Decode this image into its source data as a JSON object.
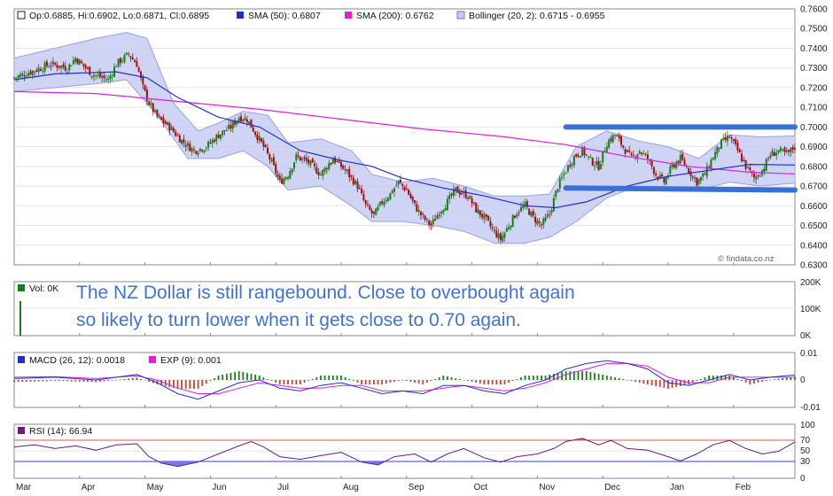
{
  "colors": {
    "up_candle": "#1a7f1a",
    "down_candle": "#a01010",
    "sma50": "#1f2fcc",
    "sma200": "#e01ee0",
    "bollinger_fill": "#c7cbf2",
    "bollinger_edge": "#9aa0e6",
    "range_lines": "#3a6fd8",
    "macd_line": "#1f2fcc",
    "exp_line": "#e01ee0",
    "hist_up": "#1a7f1a",
    "hist_down": "#d04030",
    "rsi_line": "#6a1a7a",
    "rsi_70": "#e05050",
    "rsi_30": "#3a3ad0",
    "annotation": "#3f73d6"
  },
  "annotation": {
    "line1": "The NZ Dollar is still rangebound. Close to overbought again",
    "line2": "so likely to turn lower when it gets close to 0.70 again."
  },
  "source": "© findata.co.nz",
  "chart_data": [
    {
      "type": "candlestick",
      "legend": {
        "ohlc": "Op:0.6885, Hi:0.6902, Lo:0.6871, Cl:0.6895",
        "sma50": "SMA (50): 0.6807",
        "sma200": "SMA (200): 0.6762",
        "bollinger": "Bollinger (20, 2): 0.6715 - 0.6955"
      },
      "ylim": [
        0.63,
        0.76
      ],
      "yticks": [
        "0.7600",
        "0.7500",
        "0.7400",
        "0.7300",
        "0.7200",
        "0.7100",
        "0.7000",
        "0.6900",
        "0.6800",
        "0.6700",
        "0.6600",
        "0.6500",
        "0.6400",
        "0.6300"
      ],
      "x_months": [
        "Mar",
        "Apr",
        "May",
        "Jun",
        "Jul",
        "Aug",
        "Sep",
        "Oct",
        "Nov",
        "Dec",
        "Jan",
        "Feb"
      ],
      "close_path": [
        [
          0,
          0.725
        ],
        [
          8,
          0.728
        ],
        [
          18,
          0.732
        ],
        [
          26,
          0.73
        ],
        [
          30,
          0.735
        ],
        [
          38,
          0.727
        ],
        [
          46,
          0.724
        ],
        [
          50,
          0.732
        ],
        [
          56,
          0.737
        ],
        [
          60,
          0.732
        ],
        [
          63,
          0.72
        ],
        [
          66,
          0.712
        ],
        [
          70,
          0.705
        ],
        [
          76,
          0.7
        ],
        [
          82,
          0.693
        ],
        [
          88,
          0.688
        ],
        [
          94,
          0.69
        ],
        [
          100,
          0.696
        ],
        [
          106,
          0.7
        ],
        [
          110,
          0.705
        ],
        [
          114,
          0.704
        ],
        [
          118,
          0.697
        ],
        [
          122,
          0.69
        ],
        [
          126,
          0.682
        ],
        [
          130,
          0.672
        ],
        [
          134,
          0.676
        ],
        [
          138,
          0.685
        ],
        [
          144,
          0.682
        ],
        [
          150,
          0.676
        ],
        [
          156,
          0.684
        ],
        [
          162,
          0.678
        ],
        [
          168,
          0.67
        ],
        [
          172,
          0.66
        ],
        [
          176,
          0.655
        ],
        [
          180,
          0.662
        ],
        [
          184,
          0.666
        ],
        [
          188,
          0.672
        ],
        [
          192,
          0.668
        ],
        [
          196,
          0.66
        ],
        [
          200,
          0.654
        ],
        [
          204,
          0.65
        ],
        [
          208,
          0.657
        ],
        [
          212,
          0.662
        ],
        [
          216,
          0.668
        ],
        [
          222,
          0.665
        ],
        [
          226,
          0.658
        ],
        [
          230,
          0.654
        ],
        [
          234,
          0.648
        ],
        [
          238,
          0.643
        ],
        [
          242,
          0.65
        ],
        [
          246,
          0.657
        ],
        [
          250,
          0.66
        ],
        [
          254,
          0.654
        ],
        [
          258,
          0.65
        ],
        [
          262,
          0.656
        ],
        [
          266,
          0.67
        ],
        [
          270,
          0.678
        ],
        [
          274,
          0.685
        ],
        [
          278,
          0.688
        ],
        [
          282,
          0.683
        ],
        [
          286,
          0.68
        ],
        [
          290,
          0.692
        ],
        [
          294,
          0.696
        ],
        [
          298,
          0.69
        ],
        [
          302,
          0.684
        ],
        [
          306,
          0.688
        ],
        [
          310,
          0.684
        ],
        [
          314,
          0.676
        ],
        [
          318,
          0.672
        ],
        [
          322,
          0.68
        ],
        [
          326,
          0.684
        ],
        [
          330,
          0.678
        ],
        [
          334,
          0.672
        ],
        [
          338,
          0.676
        ],
        [
          342,
          0.685
        ],
        [
          346,
          0.692
        ],
        [
          350,
          0.695
        ],
        [
          354,
          0.688
        ],
        [
          358,
          0.68
        ],
        [
          362,
          0.674
        ],
        [
          366,
          0.678
        ],
        [
          370,
          0.686
        ],
        [
          374,
          0.688
        ],
        [
          378,
          0.686
        ],
        [
          382,
          0.69
        ]
      ],
      "sma50_path": [
        [
          0,
          0.724
        ],
        [
          20,
          0.727
        ],
        [
          50,
          0.728
        ],
        [
          65,
          0.725
        ],
        [
          80,
          0.715
        ],
        [
          100,
          0.705
        ],
        [
          120,
          0.7
        ],
        [
          140,
          0.688
        ],
        [
          160,
          0.683
        ],
        [
          175,
          0.68
        ],
        [
          190,
          0.674
        ],
        [
          210,
          0.669
        ],
        [
          230,
          0.665
        ],
        [
          250,
          0.66
        ],
        [
          265,
          0.659
        ],
        [
          280,
          0.662
        ],
        [
          300,
          0.67
        ],
        [
          320,
          0.675
        ],
        [
          340,
          0.678
        ],
        [
          360,
          0.681
        ],
        [
          382,
          0.6807
        ]
      ],
      "sma200_path": [
        [
          0,
          0.718
        ],
        [
          40,
          0.717
        ],
        [
          80,
          0.713
        ],
        [
          120,
          0.709
        ],
        [
          160,
          0.704
        ],
        [
          200,
          0.699
        ],
        [
          240,
          0.695
        ],
        [
          270,
          0.691
        ],
        [
          300,
          0.685
        ],
        [
          330,
          0.68
        ],
        [
          360,
          0.677
        ],
        [
          382,
          0.6762
        ]
      ],
      "bollinger_upper": [
        [
          0,
          0.735
        ],
        [
          20,
          0.74
        ],
        [
          40,
          0.745
        ],
        [
          55,
          0.748
        ],
        [
          65,
          0.745
        ],
        [
          78,
          0.712
        ],
        [
          90,
          0.698
        ],
        [
          100,
          0.702
        ],
        [
          112,
          0.708
        ],
        [
          124,
          0.706
        ],
        [
          134,
          0.692
        ],
        [
          150,
          0.694
        ],
        [
          165,
          0.688
        ],
        [
          175,
          0.676
        ],
        [
          190,
          0.672
        ],
        [
          205,
          0.674
        ],
        [
          220,
          0.67
        ],
        [
          235,
          0.665
        ],
        [
          250,
          0.665
        ],
        [
          262,
          0.666
        ],
        [
          275,
          0.69
        ],
        [
          290,
          0.698
        ],
        [
          305,
          0.693
        ],
        [
          320,
          0.69
        ],
        [
          335,
          0.684
        ],
        [
          350,
          0.696
        ],
        [
          365,
          0.695
        ],
        [
          382,
          0.6955
        ]
      ],
      "bollinger_lower": [
        [
          0,
          0.718
        ],
        [
          20,
          0.72
        ],
        [
          40,
          0.722
        ],
        [
          55,
          0.724
        ],
        [
          70,
          0.706
        ],
        [
          85,
          0.684
        ],
        [
          100,
          0.684
        ],
        [
          112,
          0.688
        ],
        [
          124,
          0.68
        ],
        [
          134,
          0.668
        ],
        [
          150,
          0.67
        ],
        [
          165,
          0.66
        ],
        [
          175,
          0.652
        ],
        [
          190,
          0.652
        ],
        [
          205,
          0.65
        ],
        [
          220,
          0.647
        ],
        [
          235,
          0.641
        ],
        [
          250,
          0.641
        ],
        [
          262,
          0.644
        ],
        [
          275,
          0.652
        ],
        [
          290,
          0.664
        ],
        [
          305,
          0.67
        ],
        [
          320,
          0.668
        ],
        [
          335,
          0.668
        ],
        [
          350,
          0.672
        ],
        [
          365,
          0.67
        ],
        [
          382,
          0.6715
        ]
      ],
      "range_lines": [
        {
          "y_start": 0.7,
          "y_end": 0.7,
          "x_start": 270,
          "x_end": 382
        },
        {
          "y_start": 0.669,
          "y_end": 0.668,
          "x_start": 270,
          "x_end": 382
        }
      ]
    },
    {
      "type": "bar",
      "legend": "Vol: 0K",
      "yticks": [
        "200K",
        "100K",
        "0K"
      ]
    },
    {
      "type": "line",
      "legend": {
        "macd": "MACD (26, 12): 0.0018",
        "exp": "EXP (9): 0.001"
      },
      "ylim": [
        -0.01,
        0.01
      ],
      "yticks": [
        "0.01",
        "0",
        "-0.01"
      ],
      "macd_path": [
        [
          0,
          0.0005
        ],
        [
          20,
          0.001
        ],
        [
          40,
          0.0
        ],
        [
          60,
          0.002
        ],
        [
          70,
          -0.001
        ],
        [
          80,
          -0.005
        ],
        [
          90,
          -0.007
        ],
        [
          100,
          -0.004
        ],
        [
          110,
          -0.001
        ],
        [
          120,
          0.0
        ],
        [
          130,
          -0.003
        ],
        [
          140,
          -0.004
        ],
        [
          150,
          -0.002
        ],
        [
          160,
          -0.001
        ],
        [
          170,
          -0.003
        ],
        [
          180,
          -0.005
        ],
        [
          190,
          -0.004
        ],
        [
          200,
          -0.005
        ],
        [
          210,
          -0.002
        ],
        [
          220,
          -0.002
        ],
        [
          230,
          -0.004
        ],
        [
          240,
          -0.005
        ],
        [
          250,
          -0.002
        ],
        [
          260,
          0.0
        ],
        [
          270,
          0.004
        ],
        [
          280,
          0.006
        ],
        [
          290,
          0.007
        ],
        [
          300,
          0.006
        ],
        [
          310,
          0.004
        ],
        [
          320,
          -0.001
        ],
        [
          330,
          -0.002
        ],
        [
          340,
          0.0
        ],
        [
          350,
          0.002
        ],
        [
          360,
          0.0
        ],
        [
          370,
          0.001
        ],
        [
          382,
          0.0018
        ]
      ],
      "exp_path": [
        [
          0,
          0.001
        ],
        [
          20,
          0.0012
        ],
        [
          40,
          0.0005
        ],
        [
          60,
          0.0015
        ],
        [
          70,
          0.0
        ],
        [
          80,
          -0.003
        ],
        [
          90,
          -0.005
        ],
        [
          100,
          -0.005
        ],
        [
          110,
          -0.003
        ],
        [
          120,
          -0.001
        ],
        [
          130,
          -0.002
        ],
        [
          140,
          -0.003
        ],
        [
          150,
          -0.003
        ],
        [
          160,
          -0.002
        ],
        [
          170,
          -0.002
        ],
        [
          180,
          -0.004
        ],
        [
          190,
          -0.004
        ],
        [
          200,
          -0.004
        ],
        [
          210,
          -0.003
        ],
        [
          220,
          -0.002
        ],
        [
          230,
          -0.003
        ],
        [
          240,
          -0.004
        ],
        [
          250,
          -0.003
        ],
        [
          260,
          -0.001
        ],
        [
          270,
          0.002
        ],
        [
          280,
          0.004
        ],
        [
          290,
          0.006
        ],
        [
          300,
          0.006
        ],
        [
          310,
          0.005
        ],
        [
          320,
          0.001
        ],
        [
          330,
          -0.001
        ],
        [
          340,
          -0.001
        ],
        [
          350,
          0.001
        ],
        [
          360,
          0.001
        ],
        [
          370,
          0.001
        ],
        [
          382,
          0.001
        ]
      ]
    },
    {
      "type": "line",
      "legend": "RSI (14): 66.94",
      "ylim": [
        0,
        100
      ],
      "yticks": [
        "100",
        "70",
        "50",
        "30",
        "0"
      ],
      "rsi_path": [
        [
          0,
          58
        ],
        [
          10,
          62
        ],
        [
          20,
          55
        ],
        [
          30,
          60
        ],
        [
          40,
          52
        ],
        [
          50,
          62
        ],
        [
          60,
          64
        ],
        [
          66,
          40
        ],
        [
          72,
          28
        ],
        [
          80,
          22
        ],
        [
          90,
          30
        ],
        [
          100,
          45
        ],
        [
          110,
          60
        ],
        [
          116,
          68
        ],
        [
          122,
          58
        ],
        [
          130,
          40
        ],
        [
          140,
          35
        ],
        [
          150,
          42
        ],
        [
          160,
          48
        ],
        [
          170,
          30
        ],
        [
          178,
          25
        ],
        [
          186,
          40
        ],
        [
          196,
          45
        ],
        [
          204,
          30
        ],
        [
          212,
          45
        ],
        [
          220,
          55
        ],
        [
          230,
          38
        ],
        [
          238,
          30
        ],
        [
          246,
          40
        ],
        [
          256,
          45
        ],
        [
          264,
          55
        ],
        [
          270,
          68
        ],
        [
          278,
          74
        ],
        [
          286,
          62
        ],
        [
          292,
          70
        ],
        [
          300,
          55
        ],
        [
          310,
          52
        ],
        [
          320,
          40
        ],
        [
          326,
          32
        ],
        [
          334,
          45
        ],
        [
          342,
          62
        ],
        [
          350,
          70
        ],
        [
          358,
          55
        ],
        [
          366,
          45
        ],
        [
          374,
          50
        ],
        [
          382,
          67
        ]
      ]
    }
  ]
}
